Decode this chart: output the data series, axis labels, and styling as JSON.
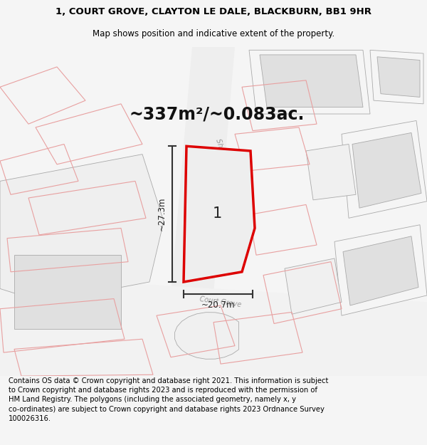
{
  "title": "1, COURT GROVE, CLAYTON LE DALE, BLACKBURN, BB1 9HR",
  "subtitle": "Map shows position and indicative extent of the property.",
  "area_text": "~337m²/~0.083ac.",
  "dim_width": "~20.7m",
  "dim_height": "~27.3m",
  "plot_label": "1",
  "footer": "Contains OS data © Crown copyright and database right 2021. This information is subject\nto Crown copyright and database rights 2023 and is reproduced with the permission of\nHM Land Registry. The polygons (including the associated geometry, namely x, y\nco-ordinates) are subject to Crown copyright and database rights 2023 Ordnance Survey\n100026316.",
  "bg_color": "#f5f5f5",
  "map_bg": "#ffffff",
  "red_color": "#dd0000",
  "pink_color": "#e8a0a0",
  "gray_building": "#d8d8d8",
  "gray_road": "#d0d0d0",
  "gray_line": "#aaaaaa",
  "title_fontsize": 9.5,
  "subtitle_fontsize": 8.5,
  "area_fontsize": 17,
  "label_fontsize": 15,
  "footer_fontsize": 7.2,
  "dim_fontsize": 8.5,
  "street_fontsize": 7
}
